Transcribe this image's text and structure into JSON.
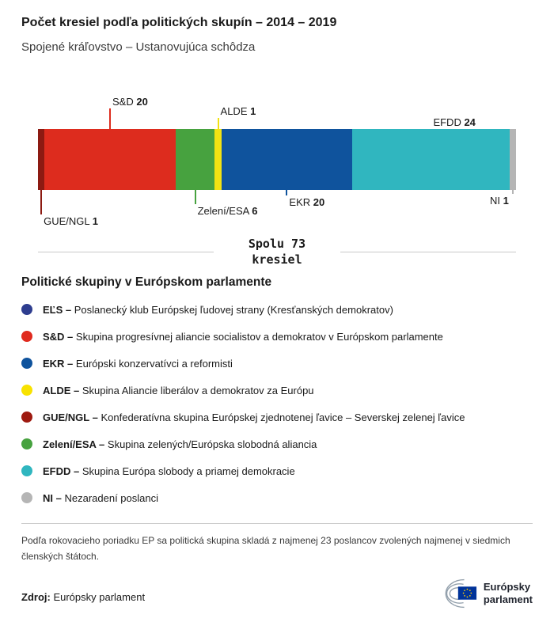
{
  "header": {
    "title": "Počet kresiel podľa politických skupín – 2014 – 2019",
    "subtitle": "Spojené kráľovstvo – Ustanovujúca schôdza"
  },
  "chart_data": {
    "type": "bar",
    "title": "Počet kresiel podľa politických skupín – 2014 – 2019",
    "subtitle": "Spojené kráľovstvo – Ustanovujúca schôdza",
    "orientation": "horizontal-stacked",
    "total_seats": 73,
    "total_label": "Spolu 73\nkresiel",
    "segments": [
      {
        "name": "GUE/NGL",
        "value": 1,
        "color": "#8c1a12",
        "label": {
          "side": "below",
          "offset": 31
        }
      },
      {
        "name": "S&D",
        "value": 20,
        "color": "#dd2c1e",
        "label": {
          "side": "above",
          "offset": 26
        }
      },
      {
        "name": "Zelení/ESA",
        "value": 6,
        "color": "#47a23f",
        "label": {
          "side": "below",
          "offset": 18
        }
      },
      {
        "name": "ALDE",
        "value": 1,
        "color": "#f1e213",
        "label": {
          "side": "above",
          "offset": 14
        }
      },
      {
        "name": "EKR",
        "value": 20,
        "color": "#0f539d",
        "label": {
          "side": "below",
          "offset": 7
        }
      },
      {
        "name": "EFDD",
        "value": 24,
        "color": "#30b6bf",
        "label": {
          "side": "above",
          "offset": 0
        }
      },
      {
        "name": "NI",
        "value": 1,
        "color": "#b5b5b5",
        "label": {
          "side": "below",
          "offset": 5,
          "align": "right"
        }
      }
    ]
  },
  "legend": {
    "heading": "Politické skupiny v Európskom parlamente",
    "items": [
      {
        "name": "EĽS –",
        "description": "Poslanecký klub Európskej ľudovej strany (Kresťanských demokratov)",
        "color": "#2e3d8f"
      },
      {
        "name": "S&D –",
        "description": "Skupina progresívnej aliancie socialistov a demokratov v Európskom parlamente",
        "color": "#e02a1e"
      },
      {
        "name": "EKR –",
        "description": "Európski konzervatívci a reformisti",
        "color": "#0f539d"
      },
      {
        "name": "ALDE –",
        "description": "Skupina Aliancie liberálov a demokratov za Európu",
        "color": "#f8e200"
      },
      {
        "name": "GUE/NGL –",
        "description": "Konfederatívna skupina Európskej zjednotenej ľavice – Severskej zelenej ľavice",
        "color": "#9e1a10"
      },
      {
        "name": "Zelení/ESA –",
        "description": "Skupina zelených/Európska slobodná aliancia",
        "color": "#47a23f"
      },
      {
        "name": "EFDD –",
        "description": "Skupina Európa slobody a priamej demokracie",
        "color": "#30b6bf"
      },
      {
        "name": "NI –",
        "description": "Nezaradení poslanci",
        "color": "#b5b5b5"
      }
    ]
  },
  "footer": {
    "note": "Podľa rokovacieho poriadku EP sa politická skupina skladá z najmenej 23 poslancov zvolených najmenej v siedmich členských štátoch.",
    "source_label": "Zdroj:",
    "source_value": "Európsky parlament",
    "logo_line1": "Európsky",
    "logo_line2": "parlament"
  }
}
